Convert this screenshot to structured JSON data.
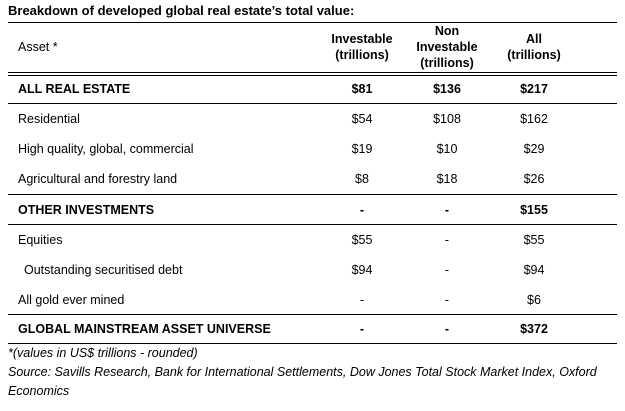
{
  "title": "Breakdown of developed global real estate’s total value:",
  "table": {
    "header": [
      [
        "Asset *"
      ],
      [
        "Investable",
        "(trillions)"
      ],
      [
        "Non",
        "Investable",
        "(trillions)"
      ],
      [
        "All",
        "(trillions)"
      ]
    ],
    "rows": [
      [
        "ALL REAL ESTATE",
        "$81",
        "$136",
        "$217"
      ],
      [
        "Residential",
        "$54",
        "$108",
        "$162"
      ],
      [
        "High quality, global, commercial",
        "$19",
        "$10",
        "$29"
      ],
      [
        "Agricultural and forestry land",
        "$8",
        "$18",
        "$26"
      ],
      [
        "OTHER INVESTMENTS",
        "-",
        "-",
        "$155"
      ],
      [
        "Equities",
        "$55",
        "-",
        "$55"
      ],
      [
        "Outstanding securitised debt",
        "$94",
        "-",
        "$94"
      ],
      [
        "All gold ever mined",
        "-",
        "-",
        "$6"
      ],
      [
        "GLOBAL MAINSTREAM ASSET UNIVERSE",
        "-",
        "-",
        "$372"
      ]
    ]
  },
  "notes": [
    "*(values in US$ trillions - rounded)",
    "Source: Savills Research, Bank for International Settlements, Dow Jones Total Stock Market Index, Oxford",
    "Economics"
  ]
}
